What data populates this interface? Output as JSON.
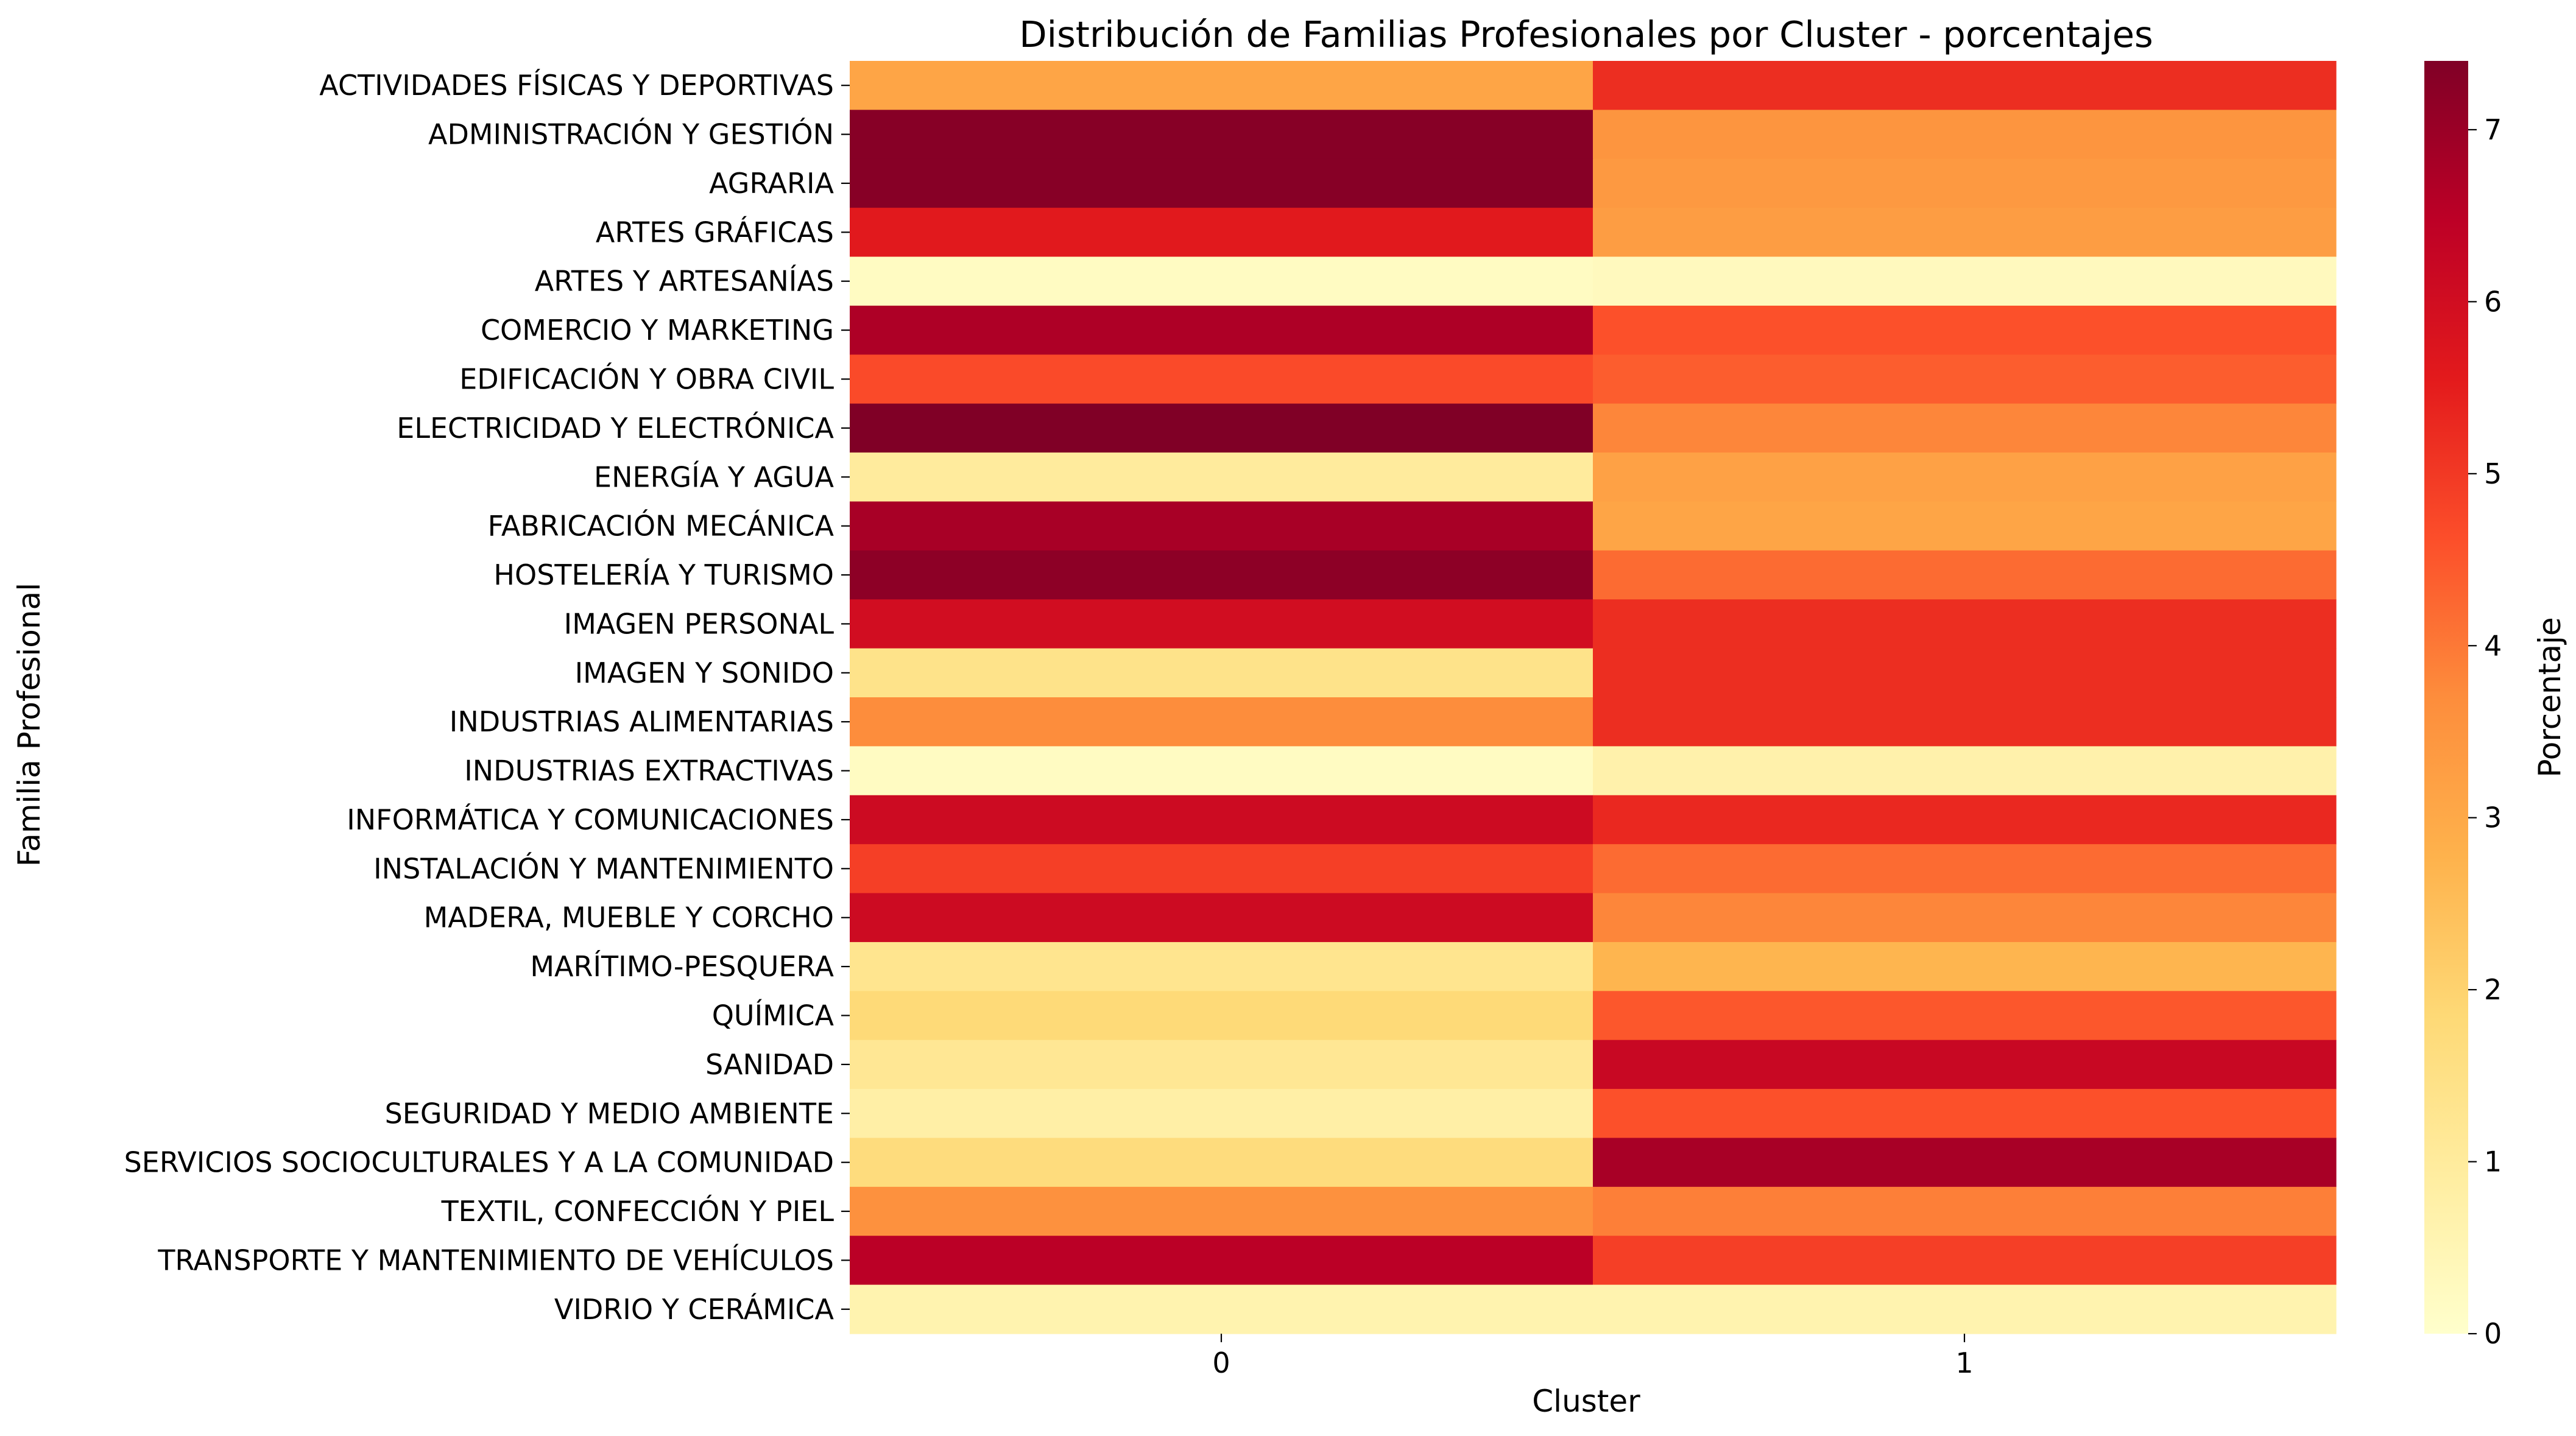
{
  "chart_data": {
    "type": "heatmap",
    "title": "Distribución de Familias Profesionales por Cluster - porcentajes",
    "xlabel": "Cluster",
    "ylabel": "Familia Profesional",
    "colorbar_label": "Porcentaje",
    "colormap": "YlOrRd",
    "vmin": 0,
    "vmax": 7.4,
    "colorbar_ticks": [
      "0",
      "1",
      "2",
      "3",
      "4",
      "5",
      "6",
      "7"
    ],
    "x_categories": [
      "0",
      "1"
    ],
    "y_categories": [
      "ACTIVIDADES FÍSICAS Y DEPORTIVAS",
      "ADMINISTRACIÓN Y GESTIÓN",
      "AGRARIA",
      "ARTES GRÁFICAS",
      "ARTES Y ARTESANÍAS",
      "COMERCIO Y MARKETING",
      "EDIFICACIÓN Y OBRA CIVIL",
      "ELECTRICIDAD Y ELECTRÓNICA",
      "ENERGÍA Y AGUA",
      "FABRICACIÓN MECÁNICA",
      "HOSTELERÍA Y TURISMO",
      "IMAGEN PERSONAL",
      "IMAGEN Y SONIDO",
      "INDUSTRIAS ALIMENTARIAS",
      "INDUSTRIAS EXTRACTIVAS",
      "INFORMÁTICA Y COMUNICACIONES",
      "INSTALACIÓN Y MANTENIMIENTO",
      "MADERA, MUEBLE Y CORCHO",
      "MARÍTIMO-PESQUERA",
      "QUÍMICA",
      "SANIDAD",
      "SEGURIDAD Y MEDIO AMBIENTE",
      "SERVICIOS SOCIOCULTURALES Y A LA COMUNIDAD",
      "TEXTIL, CONFECCIÓN Y PIEL",
      "TRANSPORTE Y MANTENIMIENTO DE VEHÍCULOS",
      "VIDRIO Y CERÁMICA"
    ],
    "values": [
      [
        3.1,
        5.2
      ],
      [
        7.3,
        3.5
      ],
      [
        7.3,
        3.4
      ],
      [
        5.6,
        3.3
      ],
      [
        0.2,
        0.3
      ],
      [
        6.7,
        4.6
      ],
      [
        4.7,
        4.4
      ],
      [
        7.4,
        3.8
      ],
      [
        1.0,
        3.2
      ],
      [
        6.8,
        3.1
      ],
      [
        7.2,
        4.2
      ],
      [
        6.0,
        5.2
      ],
      [
        1.4,
        5.2
      ],
      [
        3.7,
        5.2
      ],
      [
        0.2,
        0.7
      ],
      [
        6.1,
        5.3
      ],
      [
        4.9,
        4.2
      ],
      [
        6.1,
        3.8
      ],
      [
        1.3,
        2.7
      ],
      [
        1.8,
        4.5
      ],
      [
        1.2,
        6.2
      ],
      [
        0.8,
        4.6
      ],
      [
        1.7,
        6.8
      ],
      [
        3.6,
        3.9
      ],
      [
        6.5,
        4.9
      ],
      [
        0.6,
        0.6
      ]
    ]
  }
}
